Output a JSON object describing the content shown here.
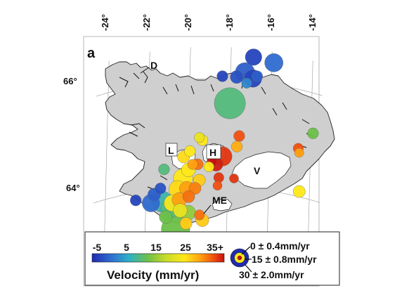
{
  "panel_label": "a",
  "longitude_ticks": [
    "-24°",
    "-22°",
    "-20°",
    "-18°",
    "-16°",
    "-14°"
  ],
  "latitude_ticks": [
    "66°",
    "64°"
  ],
  "place_labels": {
    "d": "D",
    "l": "L",
    "h": "H",
    "v": "V",
    "me": "ME"
  },
  "legend": {
    "colorbar_ticks": [
      "-5",
      "5",
      "15",
      "25",
      "35+"
    ],
    "title": "Velocity (mm/yr)",
    "size_keys": [
      "0 ± 0.4mm/yr",
      "15 ± 0.8mm/yr",
      "30 ± 2.0mm/yr"
    ]
  },
  "colors": {
    "land": "#cfcfcf",
    "glacier": "#ffffff",
    "grid": "#9a9a9a",
    "velocity_ramp": [
      "#1f2bb0",
      "#2f6cd0",
      "#2fb0c8",
      "#6cc04a",
      "#c8dc2a",
      "#ffe818",
      "#ffa010",
      "#f05010",
      "#c81010"
    ]
  },
  "stations": [
    {
      "lon": -16.9,
      "lat": 66.45,
      "velocity": -3,
      "uncertainty": 1.2
    },
    {
      "lon": -15.9,
      "lat": 66.4,
      "velocity": 0,
      "uncertainty": 1.4
    },
    {
      "lon": -17.3,
      "lat": 66.15,
      "velocity": -1,
      "uncertainty": 1.5
    },
    {
      "lon": -16.9,
      "lat": 66.05,
      "velocity": -3,
      "uncertainty": 1.3
    },
    {
      "lon": -17.7,
      "lat": 66.05,
      "velocity": -2,
      "uncertainty": 0.8
    },
    {
      "lon": -18.4,
      "lat": 66.05,
      "velocity": -3,
      "uncertainty": 0.6
    },
    {
      "lon": -17.2,
      "lat": 65.95,
      "velocity": 2,
      "uncertainty": 0.5
    },
    {
      "lon": -16.7,
      "lat": 66.1,
      "velocity": -1,
      "uncertainty": 0.6
    },
    {
      "lon": -18.0,
      "lat": 65.55,
      "velocity": 8,
      "uncertainty": 2.8
    },
    {
      "lon": -13.9,
      "lat": 65.25,
      "velocity": 10,
      "uncertainty": 0.6
    },
    {
      "lon": -14.6,
      "lat": 64.9,
      "velocity": 30,
      "uncertainty": 0.5
    },
    {
      "lon": -14.55,
      "lat": 64.82,
      "velocity": 25,
      "uncertainty": 0.4
    },
    {
      "lon": -14.5,
      "lat": 64.1,
      "velocity": 20,
      "uncertainty": 0.7
    },
    {
      "lon": -17.5,
      "lat": 64.95,
      "velocity": 30,
      "uncertainty": 0.6
    },
    {
      "lon": -17.6,
      "lat": 64.75,
      "velocity": 24,
      "uncertainty": 0.6
    },
    {
      "lon": -18.3,
      "lat": 64.55,
      "velocity": 32,
      "uncertainty": 1.5
    },
    {
      "lon": -18.6,
      "lat": 64.4,
      "velocity": 34,
      "uncertainty": 0.9
    },
    {
      "lon": -18.8,
      "lat": 64.45,
      "velocity": 35,
      "uncertainty": 0.5
    },
    {
      "lon": -18.45,
      "lat": 64.15,
      "velocity": 32,
      "uncertainty": 0.5
    },
    {
      "lon": -17.7,
      "lat": 64.15,
      "velocity": 32,
      "uncertainty": 0.4
    },
    {
      "lon": -18.5,
      "lat": 64.0,
      "velocity": 30,
      "uncertainty": 0.4
    },
    {
      "lon": -19.3,
      "lat": 64.85,
      "velocity": 20,
      "uncertainty": 0.6
    },
    {
      "lon": -19.45,
      "lat": 64.9,
      "velocity": 18,
      "uncertainty": 0.5
    },
    {
      "lon": -19.9,
      "lat": 64.65,
      "velocity": 20,
      "uncertainty": 0.6
    },
    {
      "lon": -20.2,
      "lat": 64.55,
      "velocity": 21,
      "uncertainty": 0.7
    },
    {
      "lon": -19.5,
      "lat": 64.4,
      "velocity": 28,
      "uncertainty": 0.6
    },
    {
      "lon": -19.75,
      "lat": 64.4,
      "velocity": 25,
      "uncertainty": 0.5
    },
    {
      "lon": -18.95,
      "lat": 64.35,
      "velocity": 20,
      "uncertainty": 0.5
    },
    {
      "lon": -19.95,
      "lat": 64.3,
      "velocity": 20,
      "uncertainty": 0.9
    },
    {
      "lon": -20.2,
      "lat": 64.15,
      "velocity": 20,
      "uncertainty": 1.5
    },
    {
      "lon": -19.4,
      "lat": 64.1,
      "velocity": 22,
      "uncertainty": 0.7
    },
    {
      "lon": -20.45,
      "lat": 63.95,
      "velocity": 21,
      "uncertainty": 1.3
    },
    {
      "lon": -20.0,
      "lat": 63.95,
      "velocity": 25,
      "uncertainty": 1.0
    },
    {
      "lon": -19.6,
      "lat": 63.95,
      "velocity": 27,
      "uncertainty": 0.7
    },
    {
      "lon": -20.7,
      "lat": 63.7,
      "velocity": 19,
      "uncertainty": 1.2
    },
    {
      "lon": -20.35,
      "lat": 63.75,
      "velocity": 25,
      "uncertainty": 1.0
    },
    {
      "lon": -19.9,
      "lat": 63.8,
      "velocity": 28,
      "uncertainty": 0.7
    },
    {
      "lon": -21.15,
      "lat": 64.35,
      "velocity": 8,
      "uncertainty": 0.6
    },
    {
      "lon": -21.3,
      "lat": 64.0,
      "velocity": -2,
      "uncertainty": 0.6
    },
    {
      "lon": -21.6,
      "lat": 63.9,
      "velocity": -1,
      "uncertainty": 0.8
    },
    {
      "lon": -21.75,
      "lat": 63.75,
      "velocity": 0,
      "uncertainty": 1.3
    },
    {
      "lon": -22.5,
      "lat": 63.85,
      "velocity": -3,
      "uncertainty": 0.6
    },
    {
      "lon": -21.2,
      "lat": 63.75,
      "velocity": 6,
      "uncertainty": 1.7
    },
    {
      "lon": -20.8,
      "lat": 63.6,
      "velocity": 8,
      "uncertainty": 1.4
    },
    {
      "lon": -21.0,
      "lat": 63.45,
      "velocity": 10,
      "uncertainty": 0.8
    },
    {
      "lon": -20.3,
      "lat": 63.55,
      "velocity": 18,
      "uncertainty": 0.9
    },
    {
      "lon": -19.9,
      "lat": 63.5,
      "velocity": 12,
      "uncertainty": 1.0
    },
    {
      "lon": -20.0,
      "lat": 63.3,
      "velocity": 22,
      "uncertainty": 0.7
    },
    {
      "lon": -19.35,
      "lat": 63.45,
      "velocity": 28,
      "uncertainty": 0.5
    },
    {
      "lon": -19.2,
      "lat": 63.35,
      "velocity": 22,
      "uncertainty": 0.8
    },
    {
      "lon": -20.5,
      "lat": 63.2,
      "velocity": 10,
      "uncertainty": 2.5
    }
  ]
}
